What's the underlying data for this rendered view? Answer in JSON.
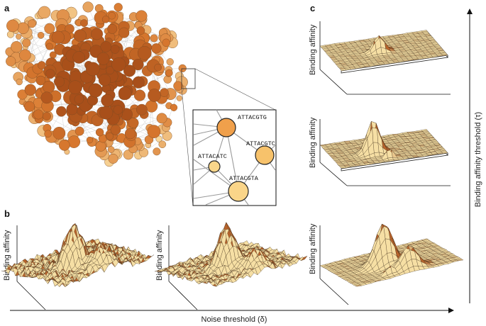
{
  "panels": {
    "a": {
      "letter": "a",
      "inset_nodes": [
        {
          "seq": "ATTACGTG",
          "fill": "#f0a04b"
        },
        {
          "seq": "ATTACGTC",
          "fill": "#f7c26b"
        },
        {
          "seq": "ATTACATC",
          "fill": "#f9d68a"
        },
        {
          "seq": "ATTACGTA",
          "fill": "#fad589"
        }
      ]
    },
    "b": {
      "letter": "b",
      "ylabels": [
        "Binding affinity",
        "Binding affinity"
      ]
    },
    "c": {
      "letter": "c",
      "ylabels": [
        "Binding affinity",
        "Binding affinity",
        "Binding affinity"
      ]
    }
  },
  "axes": {
    "x_label": "Noise threshold (δ)",
    "y_label": "Binding affinity threshold (τ)"
  },
  "colors": {
    "node_dark": "#a84f1a",
    "node_mid": "#d9792f",
    "node_light": "#f9d99c",
    "surface_light": "#f6dfa4",
    "surface_dark": "#b8642c",
    "edge": "#bfbfbf"
  }
}
